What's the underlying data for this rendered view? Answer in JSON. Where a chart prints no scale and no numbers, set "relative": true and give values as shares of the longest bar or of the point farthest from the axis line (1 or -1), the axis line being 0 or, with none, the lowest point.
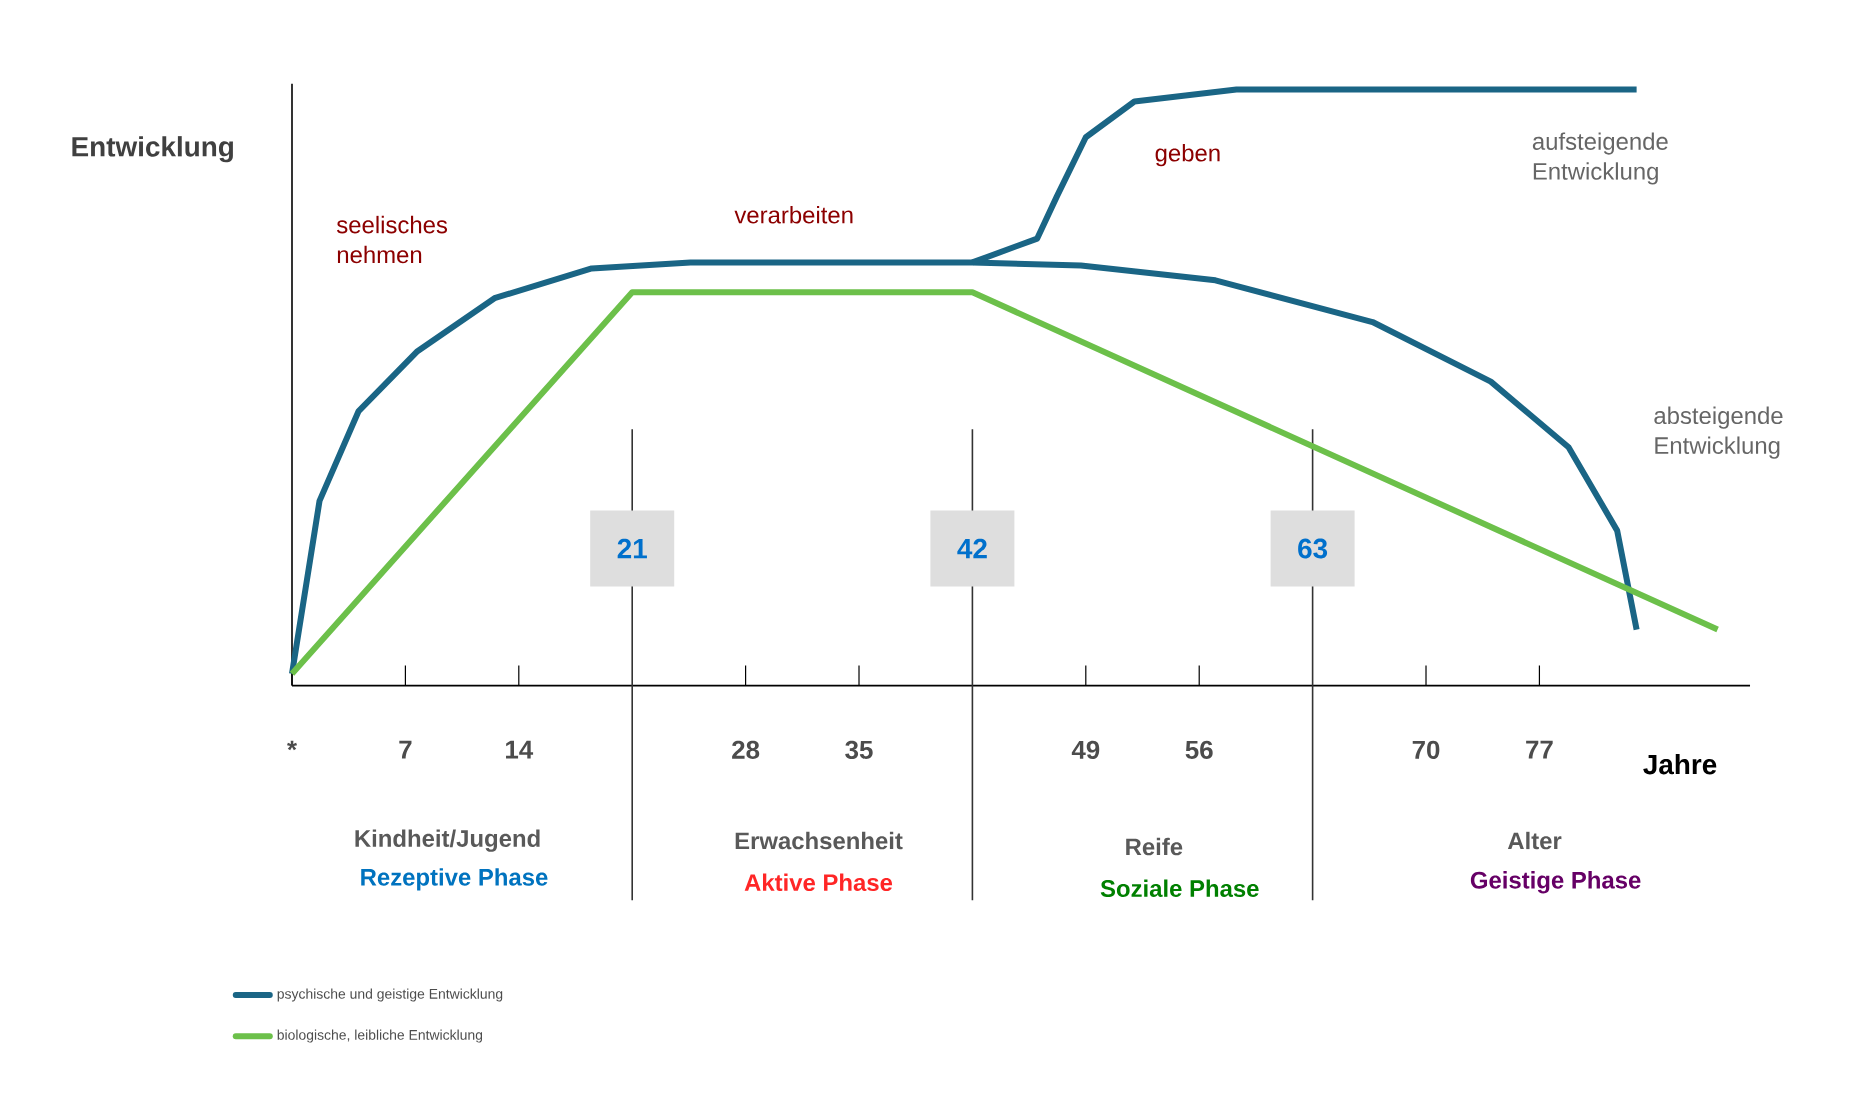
{
  "chart_data": {
    "type": "line",
    "relative": true,
    "xlabel": "Jahre",
    "ylabel": "Entwicklung",
    "xlim": [
      0,
      90
    ],
    "xticks": [
      {
        "value": 0,
        "label": "*"
      },
      7,
      14,
      28,
      35,
      49,
      56,
      70,
      77
    ],
    "marker": "none",
    "legend": "bottom left",
    "series": [
      {
        "name": "psychische  und geistige Entwicklung",
        "color": "#1a6585",
        "x": [
          0,
          1.7,
          4.1,
          7.7,
          12.5,
          18.5,
          24.6,
          42,
          48.7,
          57,
          66.7,
          74,
          78.8,
          81.8,
          83
        ],
        "values": [
          0.02,
          0.31,
          0.46,
          0.56,
          0.65,
          0.7,
          0.71,
          0.71,
          0.705,
          0.68,
          0.61,
          0.51,
          0.4,
          0.26,
          0.094
        ]
      },
      {
        "name": "biologische, leibliche Entwicklung",
        "color": "#6cc04a",
        "x": [
          0,
          21,
          42,
          88
        ],
        "values": [
          0.02,
          0.66,
          0.66,
          0.094
        ]
      },
      {
        "color": "#1a6585",
        "x": [
          42,
          46,
          47.2,
          49,
          52,
          58.3,
          83
        ],
        "values": [
          0.71,
          0.75,
          0.82,
          0.92,
          0.98,
          1.0,
          1.0
        ]
      }
    ],
    "ref_lines": [
      {
        "axis": "x",
        "value": 21,
        "label": "21",
        "color": "#333333"
      },
      {
        "axis": "x",
        "value": 42,
        "label": "42",
        "color": "#333333"
      },
      {
        "axis": "x",
        "value": 63,
        "label": "63",
        "color": "#333333"
      }
    ],
    "annotations": [
      "seelisches nehmen",
      "verarbeiten",
      "geben",
      "aufsteigende Entwicklung",
      "absteigende Entwicklung",
      "Kindheit/Jugend",
      "Rezeptive Phase",
      "Erwachsenheit",
      "Aktive Phase",
      "Reife",
      "Soziale Phase",
      "Alter",
      "Geistige Phase"
    ]
  }
}
